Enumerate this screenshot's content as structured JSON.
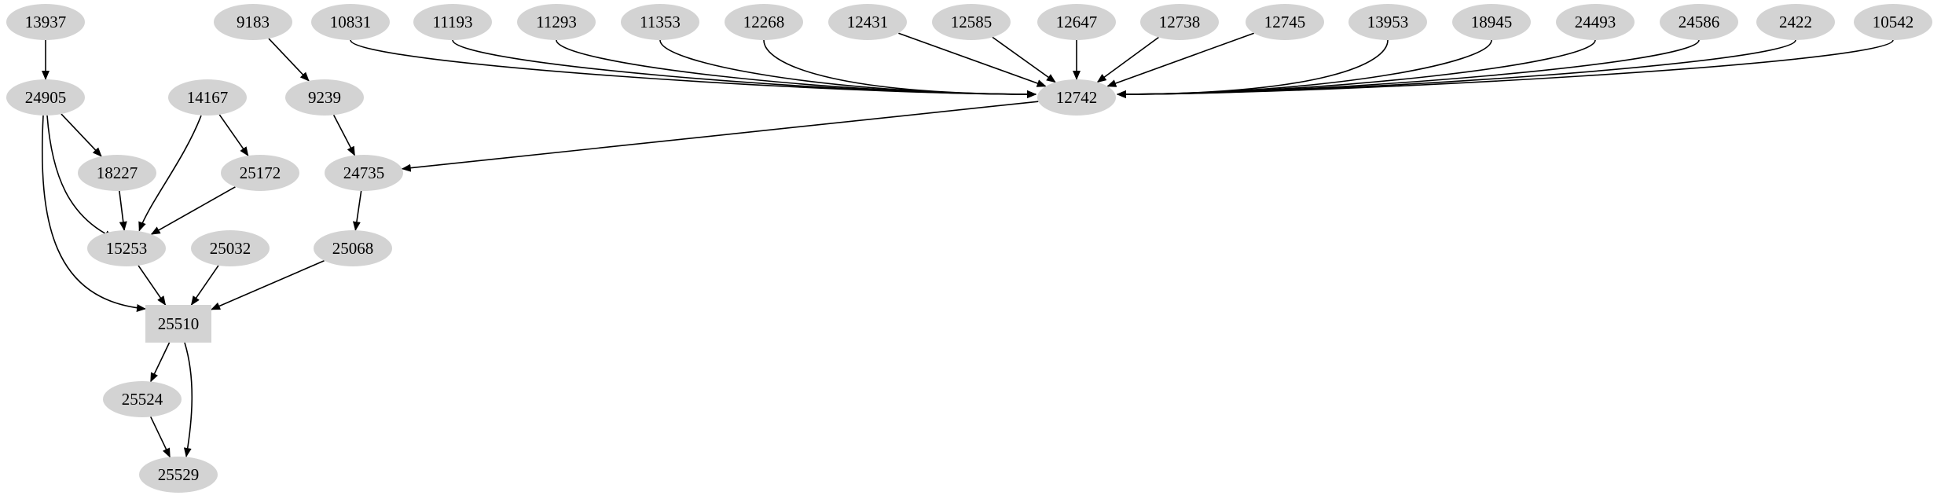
{
  "graph": {
    "node_fill": "#d3d3d3",
    "edge_color": "#000000",
    "nodes": [
      {
        "id": "13937",
        "shape": "ellipse"
      },
      {
        "id": "9183",
        "shape": "ellipse"
      },
      {
        "id": "10831",
        "shape": "ellipse"
      },
      {
        "id": "11193",
        "shape": "ellipse"
      },
      {
        "id": "11293",
        "shape": "ellipse"
      },
      {
        "id": "11353",
        "shape": "ellipse"
      },
      {
        "id": "12268",
        "shape": "ellipse"
      },
      {
        "id": "12431",
        "shape": "ellipse"
      },
      {
        "id": "12585",
        "shape": "ellipse"
      },
      {
        "id": "12647",
        "shape": "ellipse"
      },
      {
        "id": "12738",
        "shape": "ellipse"
      },
      {
        "id": "12745",
        "shape": "ellipse"
      },
      {
        "id": "13953",
        "shape": "ellipse"
      },
      {
        "id": "18945",
        "shape": "ellipse"
      },
      {
        "id": "24493",
        "shape": "ellipse"
      },
      {
        "id": "24586",
        "shape": "ellipse"
      },
      {
        "id": "2422",
        "shape": "ellipse"
      },
      {
        "id": "10542",
        "shape": "ellipse"
      },
      {
        "id": "24905",
        "shape": "ellipse"
      },
      {
        "id": "14167",
        "shape": "ellipse"
      },
      {
        "id": "9239",
        "shape": "ellipse"
      },
      {
        "id": "12742",
        "shape": "ellipse"
      },
      {
        "id": "18227",
        "shape": "ellipse"
      },
      {
        "id": "25172",
        "shape": "ellipse"
      },
      {
        "id": "24735",
        "shape": "ellipse"
      },
      {
        "id": "15253",
        "shape": "ellipse"
      },
      {
        "id": "25032",
        "shape": "ellipse"
      },
      {
        "id": "25068",
        "shape": "ellipse"
      },
      {
        "id": "25510",
        "shape": "box"
      },
      {
        "id": "25524",
        "shape": "ellipse"
      },
      {
        "id": "25529",
        "shape": "ellipse"
      }
    ],
    "edges": [
      [
        "13937",
        "24905"
      ],
      [
        "9183",
        "9239"
      ],
      [
        "9239",
        "24735"
      ],
      [
        "12742",
        "24735"
      ],
      [
        "24905",
        "18227"
      ],
      [
        "24905",
        "15253"
      ],
      [
        "24905",
        "25510"
      ],
      [
        "14167",
        "15253"
      ],
      [
        "14167",
        "25172"
      ],
      [
        "18227",
        "15253"
      ],
      [
        "25172",
        "15253"
      ],
      [
        "24735",
        "25068"
      ],
      [
        "15253",
        "25510"
      ],
      [
        "25032",
        "25510"
      ],
      [
        "25068",
        "25510"
      ],
      [
        "25510",
        "25524"
      ],
      [
        "25510",
        "25529"
      ],
      [
        "25524",
        "25529"
      ],
      [
        "10831",
        "12742"
      ],
      [
        "11193",
        "12742"
      ],
      [
        "11293",
        "12742"
      ],
      [
        "11353",
        "12742"
      ],
      [
        "12268",
        "12742"
      ],
      [
        "12431",
        "12742"
      ],
      [
        "12585",
        "12742"
      ],
      [
        "12647",
        "12742"
      ],
      [
        "12738",
        "12742"
      ],
      [
        "12745",
        "12742"
      ],
      [
        "13953",
        "12742"
      ],
      [
        "18945",
        "12742"
      ],
      [
        "24493",
        "12742"
      ],
      [
        "24586",
        "12742"
      ],
      [
        "2422",
        "12742"
      ],
      [
        "10542",
        "12742"
      ]
    ]
  }
}
